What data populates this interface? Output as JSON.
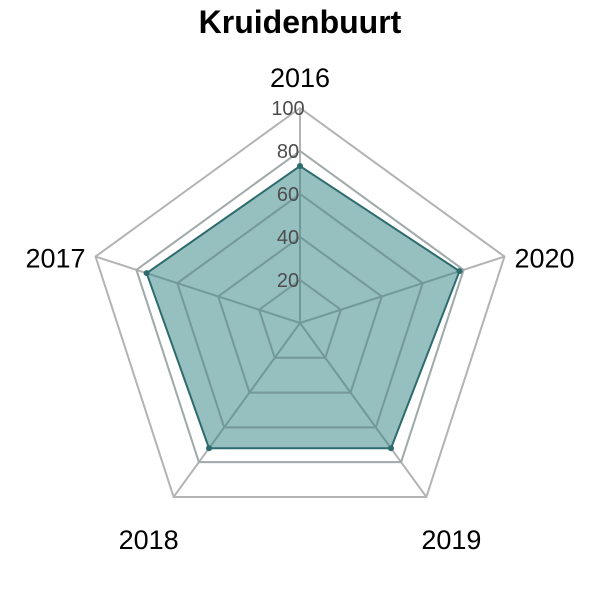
{
  "chart_data": {
    "type": "radar",
    "title": "Kruidenbuurt",
    "categories": [
      "2016",
      "2017",
      "2018",
      "2019",
      "2020"
    ],
    "values": [
      73,
      75,
      72,
      72,
      78
    ],
    "ylim": [
      0,
      100
    ],
    "rings": [
      20,
      40,
      60,
      80,
      100
    ],
    "tick_labels": [
      "20",
      "40",
      "60",
      "80",
      "100"
    ],
    "colors": {
      "fill": "#2e7f81",
      "stroke": "#2d6b6d",
      "grid_outer": "#b3b3b3",
      "grid_inner": "#7f9a9a"
    }
  }
}
